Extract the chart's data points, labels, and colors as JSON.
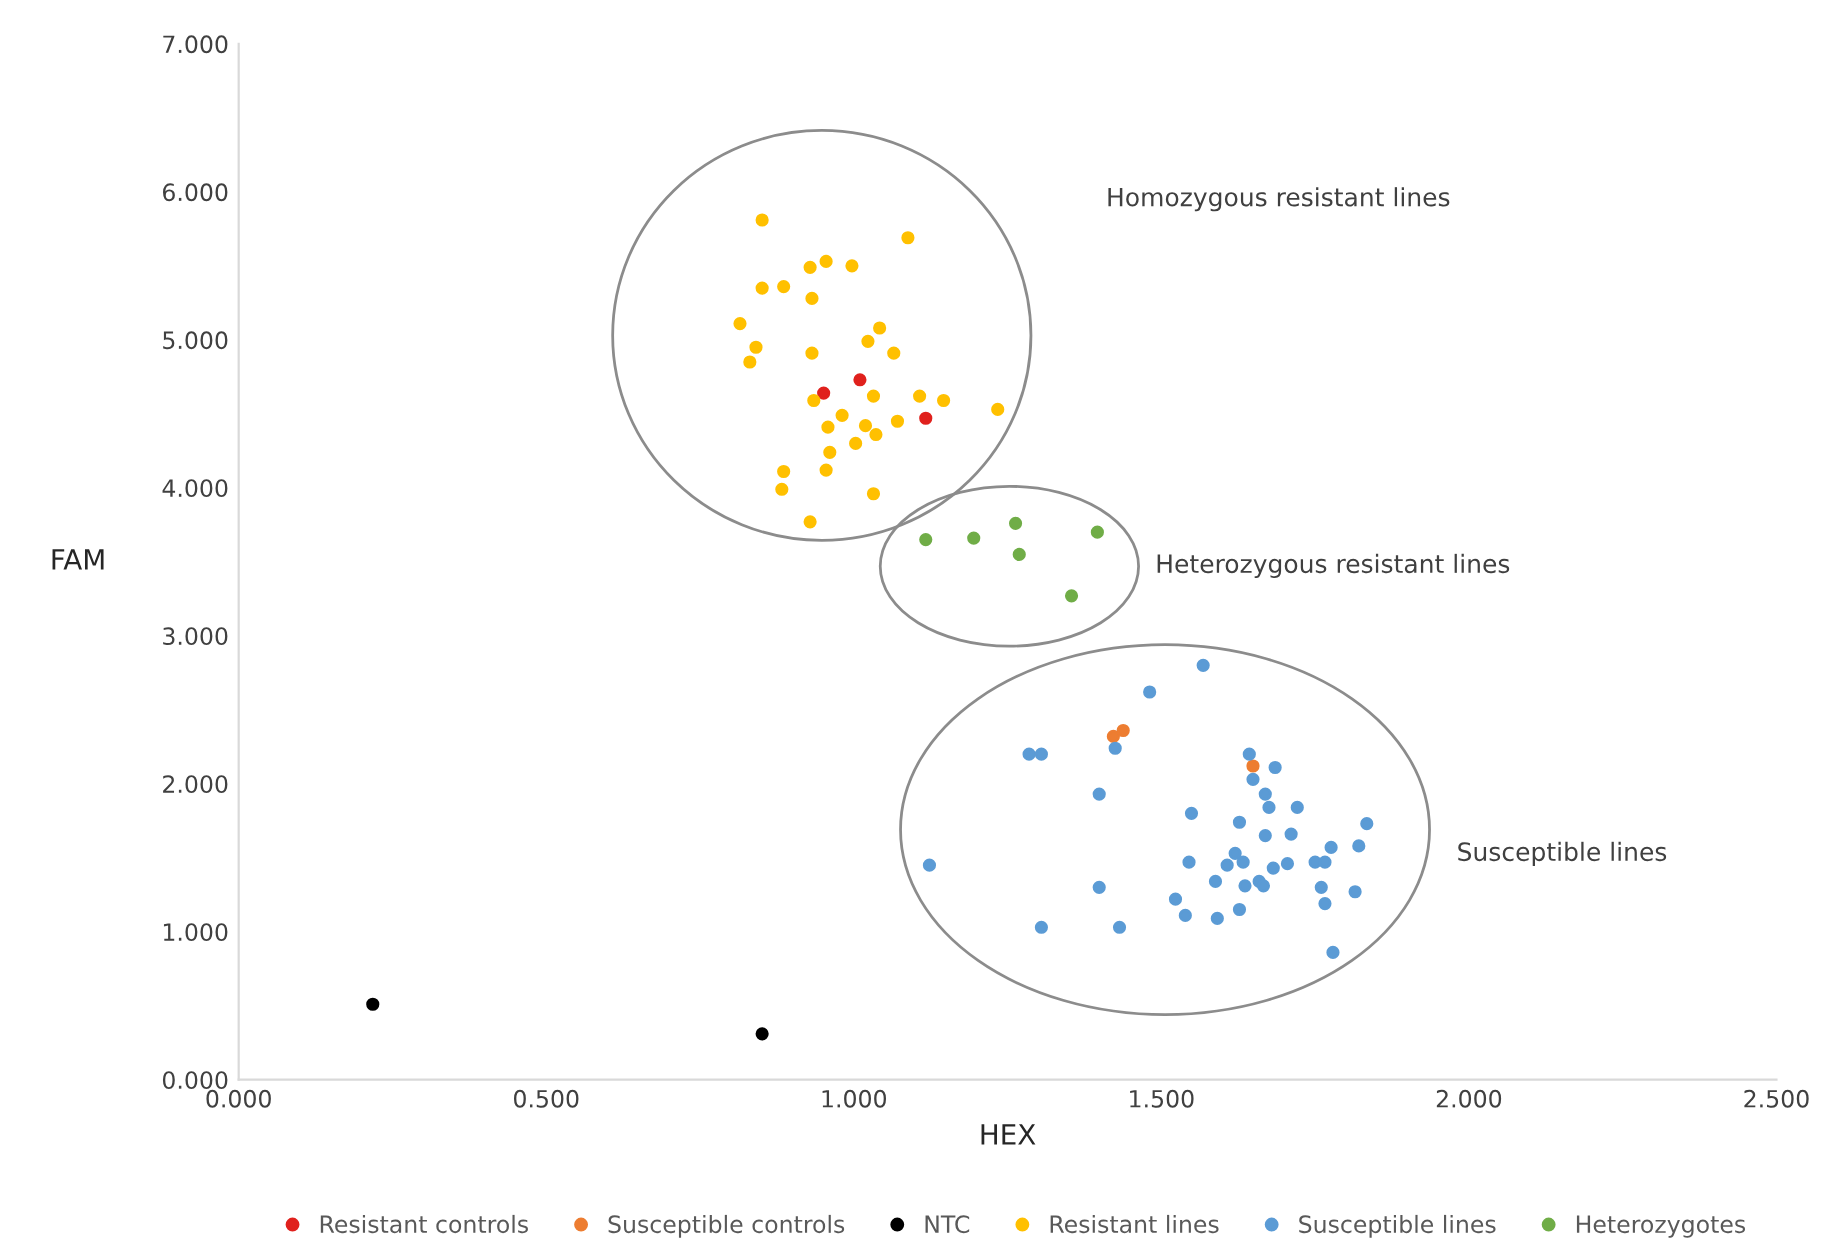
{
  "chart_data": {
    "type": "scatter",
    "xlabel": "HEX",
    "ylabel": "FAM",
    "xlim": [
      0,
      2.5
    ],
    "ylim": [
      0,
      7
    ],
    "xticks": [
      {
        "value": 0,
        "label": "0.000"
      },
      {
        "value": 0.5,
        "label": "0.500"
      },
      {
        "value": 1,
        "label": "1.000"
      },
      {
        "value": 1.5,
        "label": "1.500"
      },
      {
        "value": 2,
        "label": "2.000"
      },
      {
        "value": 2.5,
        "label": "2.500"
      }
    ],
    "yticks": [
      {
        "value": 0,
        "label": "0.000"
      },
      {
        "value": 1,
        "label": "1.000"
      },
      {
        "value": 2,
        "label": "2.000"
      },
      {
        "value": 3,
        "label": "3.000"
      },
      {
        "value": 4,
        "label": "4.000"
      },
      {
        "value": 5,
        "label": "5.000"
      },
      {
        "value": 6,
        "label": "6.000"
      },
      {
        "value": 7,
        "label": "7.000"
      }
    ],
    "grid": false,
    "legend": "bottom",
    "marker": "circle",
    "annotations": [
      "Homozygous resistant lines",
      "Heterozygous resistant lines",
      "Susceptible lines"
    ],
    "series": [
      {
        "name": "Resistant controls",
        "color": "#e0211d",
        "x": [
          0.951,
          1.01,
          1.117
        ],
        "values": [
          4.64,
          4.73,
          4.47
        ]
      },
      {
        "name": "Susceptible controls",
        "color": "#ed7d31",
        "x": [
          1.422,
          1.438,
          1.649
        ],
        "values": [
          2.32,
          2.36,
          2.12
        ]
      },
      {
        "name": "NTC",
        "color": "#000000",
        "x": [
          0.218,
          0.851
        ],
        "values": [
          0.51,
          0.31
        ]
      },
      {
        "name": "Resistant lines",
        "color": "#ffc000",
        "x": [
          0.851,
          1.088,
          0.929,
          0.955,
          0.997,
          0.851,
          0.886,
          0.932,
          0.815,
          0.841,
          0.831,
          1.042,
          1.023,
          1.065,
          0.932,
          0.935,
          1.032,
          1.107,
          1.146,
          1.234,
          0.981,
          0.958,
          1.019,
          1.036,
          1.071,
          1.003,
          0.961,
          0.955,
          0.886,
          0.883,
          1.032,
          0.929
        ],
        "values": [
          5.81,
          5.69,
          5.49,
          5.53,
          5.5,
          5.35,
          5.36,
          5.28,
          5.11,
          4.95,
          4.85,
          5.08,
          4.99,
          4.91,
          4.91,
          4.59,
          4.62,
          4.62,
          4.59,
          4.53,
          4.49,
          4.41,
          4.42,
          4.36,
          4.45,
          4.3,
          4.24,
          4.12,
          4.11,
          3.99,
          3.96,
          3.77
        ]
      },
      {
        "name": "Susceptible lines",
        "color": "#5b9bd5",
        "x": [
          1.568,
          1.481,
          1.285,
          1.305,
          1.425,
          1.643,
          1.685,
          1.649,
          1.399,
          1.669,
          1.675,
          1.721,
          1.549,
          1.627,
          1.669,
          1.711,
          1.834,
          1.821,
          1.776,
          1.123,
          1.545,
          1.607,
          1.62,
          1.633,
          1.682,
          1.705,
          1.75,
          1.766,
          1.588,
          1.636,
          1.659,
          1.666,
          1.76,
          1.815,
          1.399,
          1.523,
          1.766,
          1.539,
          1.591,
          1.627,
          1.305,
          1.432,
          1.779
        ],
        "values": [
          2.8,
          2.62,
          2.2,
          2.2,
          2.24,
          2.2,
          2.11,
          2.03,
          1.93,
          1.93,
          1.84,
          1.84,
          1.8,
          1.74,
          1.65,
          1.66,
          1.73,
          1.58,
          1.57,
          1.45,
          1.47,
          1.45,
          1.53,
          1.47,
          1.43,
          1.46,
          1.47,
          1.47,
          1.34,
          1.31,
          1.34,
          1.31,
          1.3,
          1.27,
          1.3,
          1.22,
          1.19,
          1.11,
          1.09,
          1.15,
          1.03,
          1.03,
          0.86
        ]
      },
      {
        "name": "Heterozygotes",
        "color": "#70ad47",
        "x": [
          1.117,
          1.195,
          1.263,
          1.269,
          1.396,
          1.354
        ],
        "values": [
          3.65,
          3.66,
          3.76,
          3.55,
          3.7,
          3.27
        ]
      }
    ]
  }
}
